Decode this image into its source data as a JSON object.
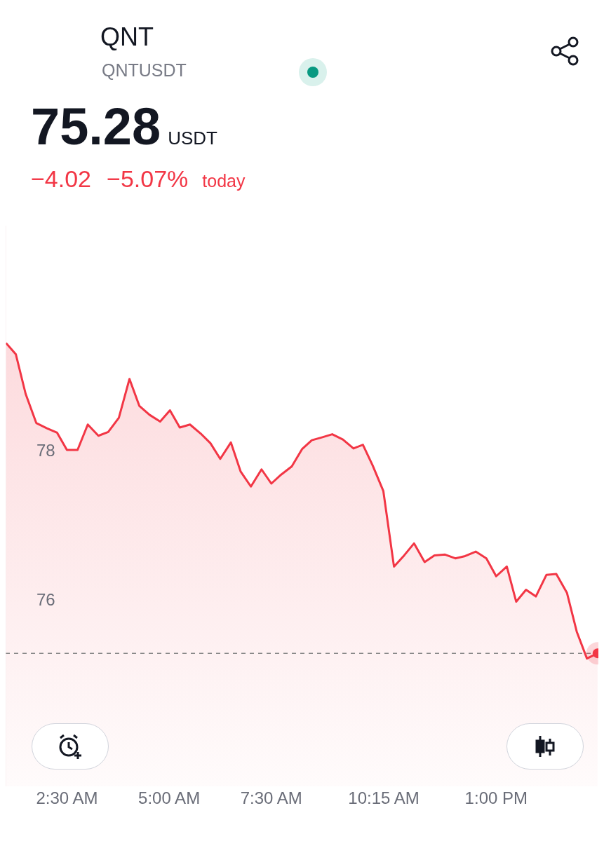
{
  "chart_data": {
    "type": "area",
    "title": "QNT",
    "subtitle": "QNTUSDT",
    "annotations": [
      "75.28",
      "USDT",
      "−4.02",
      "−5.07%",
      "today"
    ],
    "x": [
      1.01,
      1.25,
      1.49,
      1.75,
      2.01,
      2.26,
      2.5,
      2.76,
      3.01,
      3.27,
      3.51,
      3.77,
      4.03,
      4.27,
      4.52,
      4.78,
      5.02,
      5.26,
      5.51,
      5.77,
      6.01,
      6.25,
      6.51,
      6.75,
      7.0,
      7.26,
      7.5,
      7.74,
      8.0,
      8.25,
      8.49,
      8.75,
      8.99,
      9.25,
      9.51,
      9.74,
      9.98,
      10.24,
      10.5,
      10.75,
      10.99,
      11.25,
      11.49,
      11.75,
      12.0,
      12.24,
      12.5,
      12.76,
      13.0,
      13.26,
      13.49,
      13.73,
      13.97,
      14.23,
      14.47,
      14.73,
      14.97,
      15.22,
      15.48
    ],
    "series": [
      {
        "color": "#f23645",
        "values": [
          79.43,
          79.28,
          78.75,
          78.36,
          78.29,
          78.23,
          78.0,
          78.0,
          78.34,
          78.19,
          78.24,
          78.43,
          78.95,
          78.59,
          78.47,
          78.38,
          78.53,
          78.3,
          78.34,
          78.22,
          78.09,
          77.88,
          78.1,
          77.71,
          77.51,
          77.74,
          77.55,
          77.67,
          77.78,
          78.01,
          78.13,
          78.17,
          78.21,
          78.14,
          78.02,
          78.07,
          77.79,
          77.45,
          76.44,
          76.59,
          76.75,
          76.5,
          76.59,
          76.6,
          76.55,
          76.58,
          76.64,
          76.55,
          76.31,
          76.44,
          75.97,
          76.13,
          76.04,
          76.33,
          76.34,
          76.09,
          75.57,
          75.21,
          75.28
        ]
      }
    ],
    "xlim": [
      1,
      15.5
    ],
    "xticks": [
      {
        "value": 2.5,
        "label": "2:30 AM"
      },
      {
        "value": 5,
        "label": "5:00 AM"
      },
      {
        "value": 7.5,
        "label": "7:30 AM"
      },
      {
        "value": 10.25,
        "label": "10:15 AM"
      },
      {
        "value": 13,
        "label": "1:00 PM"
      }
    ],
    "ylim": [
      73.5,
      81
    ],
    "yticks": [
      76,
      78
    ],
    "ref_lines": [
      {
        "axis": "y",
        "value": 75.28,
        "color": "#888888",
        "line_style": "dashed"
      }
    ],
    "grid": false,
    "legend": false
  }
}
